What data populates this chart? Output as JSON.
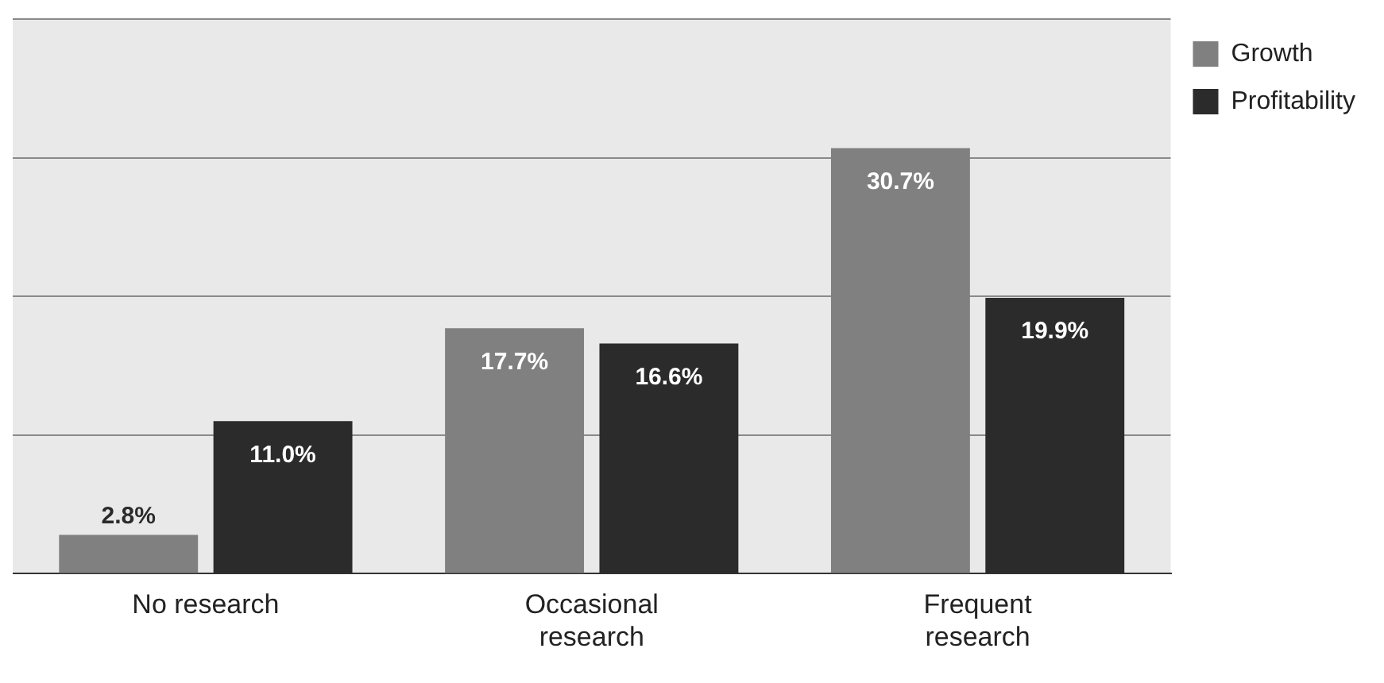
{
  "chart_data": {
    "type": "bar",
    "categories": [
      "No research",
      "Occasional research",
      "Frequent research"
    ],
    "series": [
      {
        "name": "Growth",
        "color": "#808080",
        "values": [
          2.8,
          17.7,
          30.7
        ],
        "value_labels": [
          "2.8%",
          "17.7%",
          "30.7%"
        ]
      },
      {
        "name": "Profitability",
        "color": "#2b2b2b",
        "values": [
          11.0,
          16.6,
          19.9
        ],
        "value_labels": [
          "11.0%",
          "16.6%",
          "19.9%"
        ]
      }
    ],
    "grid": "y",
    "tick_labels": "x",
    "legend": "top right"
  }
}
